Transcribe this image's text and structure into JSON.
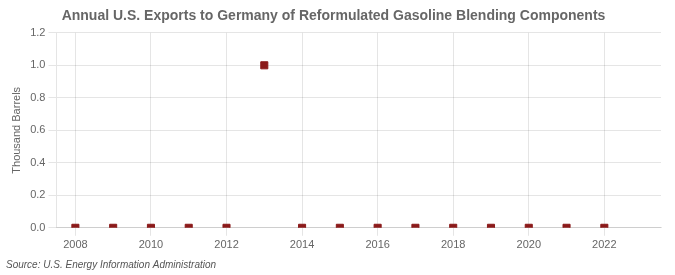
{
  "chart_data": {
    "type": "scatter",
    "title": "Annual U.S. Exports to Germany of Reformulated Gasoline Blending Components",
    "ylabel": "Thousand Barrels",
    "annotation": "Source: U.S. Energy Information Administration",
    "x": [
      2008,
      2009,
      2010,
      2011,
      2012,
      2013,
      2014,
      2015,
      2016,
      2017,
      2018,
      2019,
      2020,
      2021,
      2022
    ],
    "values": [
      0.0,
      0.0,
      0.0,
      0.0,
      0.0,
      1.0,
      0.0,
      0.0,
      0.0,
      0.0,
      0.0,
      0.0,
      0.0,
      0.0,
      0.0
    ],
    "color": "#8b1a1a",
    "marker": "square",
    "xlim": [
      2007.5,
      2023.5
    ],
    "xticks": [
      2008,
      2010,
      2012,
      2014,
      2016,
      2018,
      2020,
      2022
    ],
    "ylim": [
      0.0,
      1.2
    ],
    "yticks": [
      {
        "value": 0,
        "label": "0.0"
      },
      0.2,
      0.4,
      0.6,
      0.8,
      {
        "value": 1,
        "label": "1.0"
      },
      1.2
    ],
    "grid": true
  }
}
